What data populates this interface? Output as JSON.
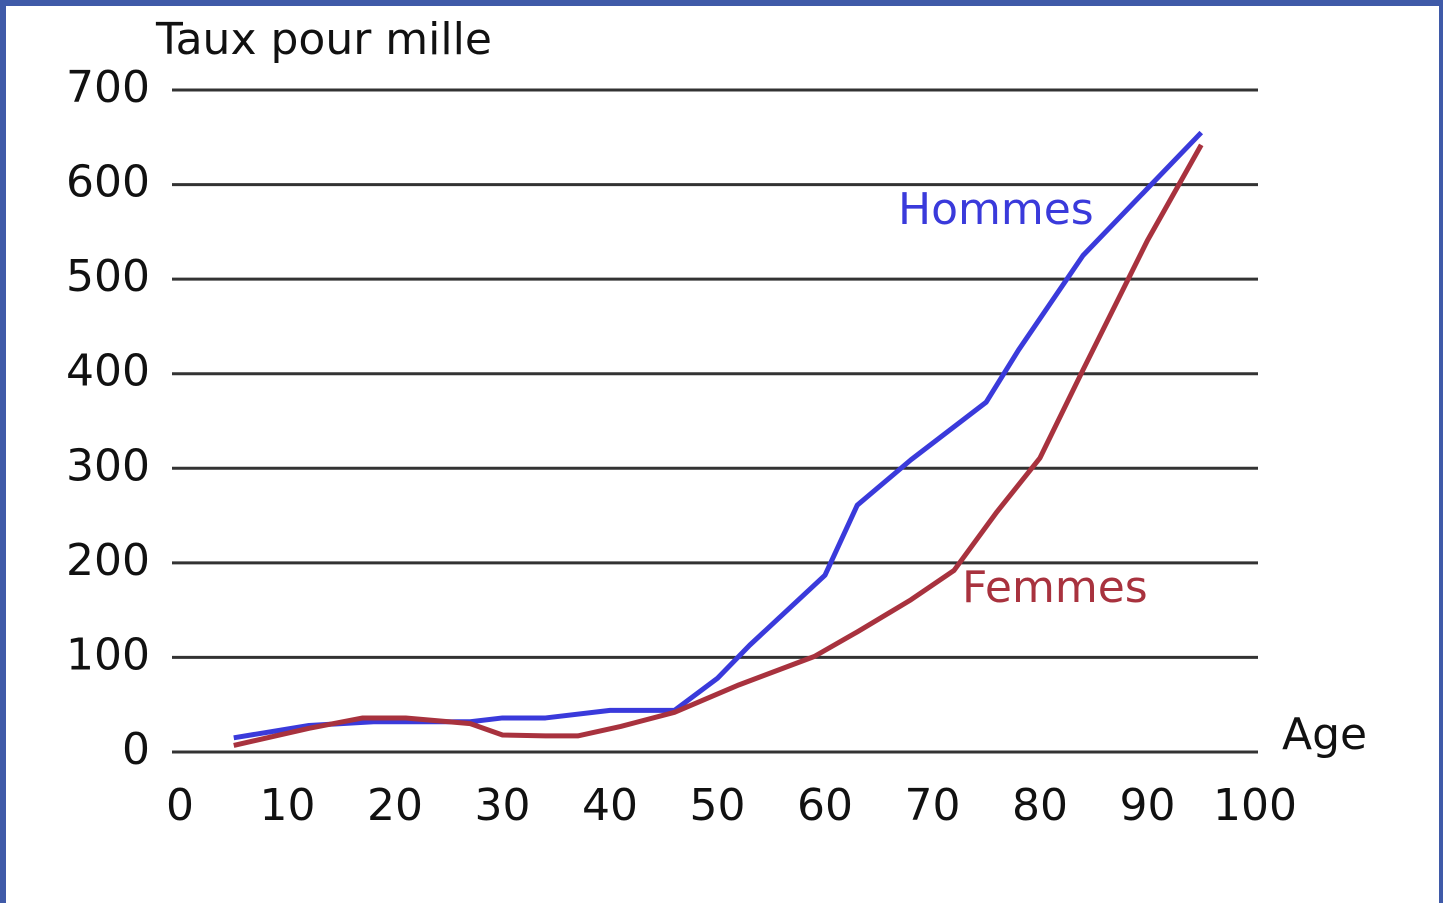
{
  "chart_data": {
    "type": "line",
    "ylabel": "Taux pour mille",
    "xlabel": "Age",
    "xlim": [
      0,
      100
    ],
    "xticks": [
      0,
      10,
      20,
      30,
      40,
      50,
      60,
      70,
      80,
      90,
      100
    ],
    "ylim": [
      0,
      700
    ],
    "yticks": [
      0,
      100,
      200,
      300,
      400,
      500,
      600,
      700
    ],
    "grid": true,
    "series": [
      {
        "name": "Hommes",
        "color": "#3a3adb",
        "x": [
          5,
          12,
          18,
          27,
          30,
          34,
          40,
          46,
          50,
          53,
          60,
          63,
          68,
          75,
          78,
          84,
          95
        ],
        "values": [
          15,
          28,
          32,
          32,
          36,
          36,
          44,
          44,
          78,
          113,
          187,
          261,
          309,
          370,
          425,
          525,
          655
        ]
      },
      {
        "name": "Femmes",
        "color": "#a8323e",
        "x": [
          5,
          12,
          17,
          21,
          27,
          30,
          34,
          37,
          41,
          46,
          52,
          59,
          63,
          68,
          72,
          76,
          80,
          84,
          90,
          95
        ],
        "values": [
          7,
          25,
          36,
          36,
          30,
          18,
          17,
          17,
          27,
          42,
          71,
          101,
          127,
          161,
          192,
          254,
          311,
          404,
          541,
          642
        ]
      }
    ]
  }
}
